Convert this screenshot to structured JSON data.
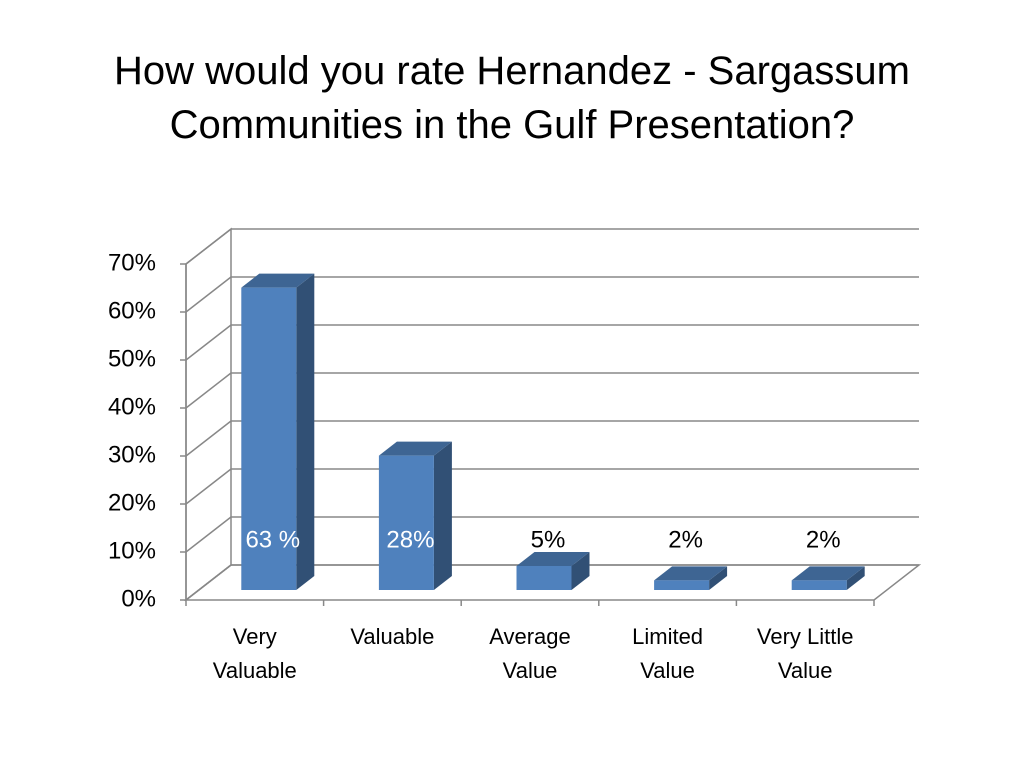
{
  "chart_data": {
    "type": "bar3d",
    "title": "How would you rate Hernandez - Sargassum Communities in the Gulf Presentation?",
    "categories": [
      "Very Valuable",
      "Valuable",
      "Average Value",
      "Limited Value",
      "Very Little Value"
    ],
    "values": [
      63,
      28,
      5,
      2,
      2
    ],
    "value_labels": [
      "63 %",
      "28%",
      "5%",
      "2%",
      "2%"
    ],
    "color": "#4f81bd",
    "ylim": [
      0,
      70
    ],
    "yticks": [
      {
        "value": 0,
        "label": "0%"
      },
      {
        "value": 10,
        "label": "10%"
      },
      {
        "value": 20,
        "label": "20%"
      },
      {
        "value": 30,
        "label": "30%"
      },
      {
        "value": 40,
        "label": "40%"
      },
      {
        "value": 50,
        "label": "50%"
      },
      {
        "value": 60,
        "label": "60%"
      },
      {
        "value": 70,
        "label": "70%"
      }
    ],
    "grid": true
  }
}
